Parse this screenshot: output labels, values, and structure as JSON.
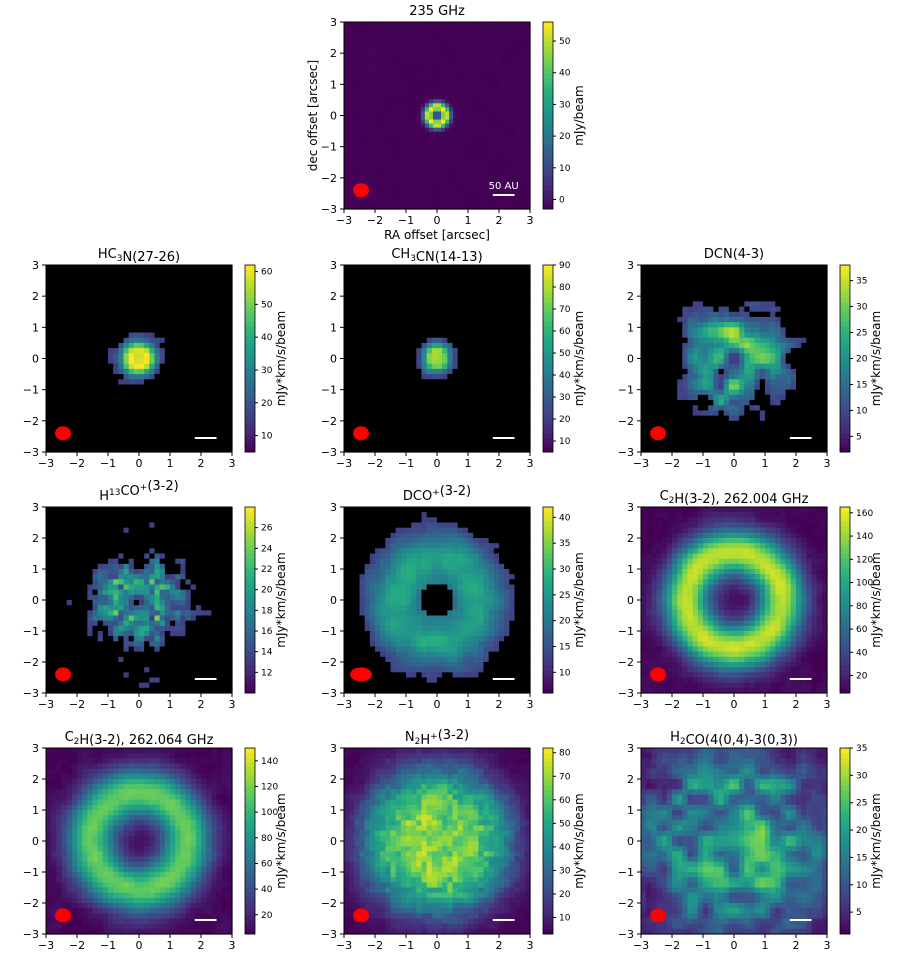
{
  "figure": {
    "colors": {
      "colormap": [
        "#440154",
        "#472c7a",
        "#3b518b",
        "#2c718e",
        "#21908d",
        "#27ad81",
        "#5cc863",
        "#aadc32",
        "#fde725"
      ],
      "masked_background": "#000000",
      "beam": "#ff0000",
      "scalebar": "#ffffff"
    }
  },
  "chart_data": [
    {
      "type": "heatmap",
      "id": "cont",
      "kind": "ring",
      "title": "235 GHz",
      "title_sub": "",
      "xlabel": "RA offset [arcsec]",
      "ylabel": "dec offset [arcsec]",
      "cbar_label": "mJy/beam",
      "xlim": [
        -3,
        3
      ],
      "ylim": [
        -3,
        3
      ],
      "xticks": [
        "−3",
        "−2",
        "−1",
        "0",
        "1",
        "2",
        "3"
      ],
      "yticks": [
        "−3",
        "−2",
        "−1",
        "0",
        "1",
        "2",
        "3"
      ],
      "clim": [
        -3,
        56
      ],
      "cticks": [
        {
          "v": 0,
          "t": "0"
        },
        {
          "v": 10,
          "t": "10"
        },
        {
          "v": 20,
          "t": "20"
        },
        {
          "v": 30,
          "t": "30"
        },
        {
          "v": 40,
          "t": "40"
        },
        {
          "v": 50,
          "t": "50"
        }
      ],
      "scalebar_label": "50 AU",
      "emission": {
        "ring_radius_arcsec": 0.28,
        "ring_width_arcsec": 0.16,
        "peak": 1.0,
        "noise": 0.02,
        "masked": false
      }
    },
    {
      "type": "heatmap",
      "id": "hc3n",
      "kind": "compact",
      "title": "HC3N(27-26)",
      "title_sub": "",
      "xlabel": "",
      "ylabel": "",
      "cbar_label": "mJy*km/s/beam",
      "xlim": [
        -3,
        3
      ],
      "ylim": [
        -3,
        3
      ],
      "xticks": [
        "−3",
        "−2",
        "−1",
        "0",
        "1",
        "2",
        "3"
      ],
      "yticks": [
        "−3",
        "−2",
        "−1",
        "0",
        "1",
        "2",
        "3"
      ],
      "clim": [
        5,
        62
      ],
      "cticks": [
        {
          "v": 10,
          "t": "10"
        },
        {
          "v": 20,
          "t": "20"
        },
        {
          "v": 30,
          "t": "30"
        },
        {
          "v": 40,
          "t": "40"
        },
        {
          "v": 50,
          "t": "50"
        },
        {
          "v": 60,
          "t": "60"
        }
      ],
      "scalebar_label": "",
      "emission": {
        "ring_radius_arcsec": 0.25,
        "ring_width_arcsec": 0.35,
        "peak": 0.8,
        "noise": 0.28,
        "masked": true
      }
    },
    {
      "type": "heatmap",
      "id": "ch3cn",
      "kind": "compact",
      "title": "CH3CN(14-13)",
      "title_sub": "",
      "xlabel": "",
      "ylabel": "",
      "cbar_label": "mJy*km/s/beam",
      "xlim": [
        -3,
        3
      ],
      "ylim": [
        -3,
        3
      ],
      "xticks": [
        "−3",
        "−2",
        "−1",
        "0",
        "1",
        "2",
        "3"
      ],
      "yticks": [
        "−3",
        "−2",
        "−1",
        "0",
        "1",
        "2",
        "3"
      ],
      "clim": [
        5,
        90
      ],
      "cticks": [
        {
          "v": 10,
          "t": "10"
        },
        {
          "v": 20,
          "t": "20"
        },
        {
          "v": 30,
          "t": "30"
        },
        {
          "v": 40,
          "t": "40"
        },
        {
          "v": 50,
          "t": "50"
        },
        {
          "v": 60,
          "t": "60"
        },
        {
          "v": 70,
          "t": "70"
        },
        {
          "v": 80,
          "t": "80"
        },
        {
          "v": 90,
          "t": "90"
        }
      ],
      "scalebar_label": "",
      "emission": {
        "ring_radius_arcsec": 0.2,
        "ring_width_arcsec": 0.3,
        "peak": 0.65,
        "noise": 0.25,
        "masked": true
      }
    },
    {
      "type": "heatmap",
      "id": "dcn",
      "kind": "diffuse",
      "title": "DCN(4-3)",
      "title_sub": "",
      "xlabel": "",
      "ylabel": "",
      "cbar_label": "mJy*km/s/beam",
      "xlim": [
        -3,
        3
      ],
      "ylim": [
        -3,
        3
      ],
      "xticks": [
        "−3",
        "−2",
        "−1",
        "0",
        "1",
        "2",
        "3"
      ],
      "yticks": [
        "−3",
        "−2",
        "−1",
        "0",
        "1",
        "2",
        "3"
      ],
      "clim": [
        2,
        38
      ],
      "cticks": [
        {
          "v": 5,
          "t": "5"
        },
        {
          "v": 10,
          "t": "10"
        },
        {
          "v": 15,
          "t": "15"
        },
        {
          "v": 20,
          "t": "20"
        },
        {
          "v": 25,
          "t": "25"
        },
        {
          "v": 30,
          "t": "30"
        },
        {
          "v": 35,
          "t": "35"
        }
      ],
      "scalebar_label": "",
      "emission": {
        "ring_radius_arcsec": 0.8,
        "ring_width_arcsec": 0.9,
        "peak": 0.55,
        "noise": 0.3,
        "masked": true
      }
    },
    {
      "type": "heatmap",
      "id": "h13co",
      "kind": "sparse",
      "title": "H13CO+(3-2)",
      "title_sub": "",
      "xlabel": "",
      "ylabel": "",
      "cbar_label": "mJy*km/s/beam",
      "xlim": [
        -3,
        3
      ],
      "ylim": [
        -3,
        3
      ],
      "xticks": [
        "−3",
        "−2",
        "−1",
        "0",
        "1",
        "2",
        "3"
      ],
      "yticks": [
        "−3",
        "−2",
        "−1",
        "0",
        "1",
        "2",
        "3"
      ],
      "clim": [
        10,
        28
      ],
      "cticks": [
        {
          "v": 12,
          "t": "12"
        },
        {
          "v": 14,
          "t": "14"
        },
        {
          "v": 16,
          "t": "16"
        },
        {
          "v": 18,
          "t": "18"
        },
        {
          "v": 20,
          "t": "20"
        },
        {
          "v": 22,
          "t": "22"
        },
        {
          "v": 24,
          "t": "24"
        },
        {
          "v": 26,
          "t": "26"
        }
      ],
      "scalebar_label": "",
      "emission": {
        "ring_radius_arcsec": 0.8,
        "ring_width_arcsec": 0.7,
        "peak": 0.5,
        "noise": 0.35,
        "masked": true
      }
    },
    {
      "type": "heatmap",
      "id": "dco",
      "kind": "ring_masked",
      "title": "DCO+(3-2)",
      "title_sub": "",
      "xlabel": "",
      "ylabel": "",
      "cbar_label": "mJy*km/s/beam",
      "xlim": [
        -3,
        3
      ],
      "ylim": [
        -3,
        3
      ],
      "xticks": [
        "−3",
        "−2",
        "−1",
        "0",
        "1",
        "2",
        "3"
      ],
      "yticks": [
        "−3",
        "−2",
        "−1",
        "0",
        "1",
        "2",
        "3"
      ],
      "clim": [
        6,
        42
      ],
      "cticks": [
        {
          "v": 10,
          "t": "10"
        },
        {
          "v": 15,
          "t": "15"
        },
        {
          "v": 20,
          "t": "20"
        },
        {
          "v": 25,
          "t": "25"
        },
        {
          "v": 30,
          "t": "30"
        },
        {
          "v": 35,
          "t": "35"
        },
        {
          "v": 40,
          "t": "40"
        }
      ],
      "scalebar_label": "",
      "emission": {
        "ring_radius_arcsec": 1.3,
        "ring_width_arcsec": 1.1,
        "peak": 0.55,
        "noise": 0.18,
        "masked": true
      }
    },
    {
      "type": "heatmap",
      "id": "c2h_a",
      "kind": "ring",
      "title": "C2H(3-2), 262.004 GHz",
      "title_sub": "",
      "xlabel": "",
      "ylabel": "",
      "cbar_label": "mJy*km/s/beam",
      "xlim": [
        -3,
        3
      ],
      "ylim": [
        -3,
        3
      ],
      "xticks": [
        "−3",
        "−2",
        "−1",
        "0",
        "1",
        "2",
        "3"
      ],
      "yticks": [
        "−3",
        "−2",
        "−1",
        "0",
        "1",
        "2",
        "3"
      ],
      "clim": [
        5,
        165
      ],
      "cticks": [
        {
          "v": 20,
          "t": "20"
        },
        {
          "v": 40,
          "t": "40"
        },
        {
          "v": 60,
          "t": "60"
        },
        {
          "v": 80,
          "t": "80"
        },
        {
          "v": 100,
          "t": "100"
        },
        {
          "v": 120,
          "t": "120"
        },
        {
          "v": 140,
          "t": "140"
        },
        {
          "v": 160,
          "t": "160"
        }
      ],
      "scalebar_label": "",
      "emission": {
        "ring_radius_arcsec": 1.55,
        "ring_width_arcsec": 0.75,
        "peak": 0.9,
        "noise": 0.1,
        "masked": false
      }
    },
    {
      "type": "heatmap",
      "id": "c2h_b",
      "kind": "ring",
      "title": "C2H(3-2), 262.064 GHz",
      "title_sub": "",
      "xlabel": "",
      "ylabel": "",
      "cbar_label": "mJy*km/s/beam",
      "xlim": [
        -3,
        3
      ],
      "ylim": [
        -3,
        3
      ],
      "xticks": [
        "−3",
        "−2",
        "−1",
        "0",
        "1",
        "2",
        "3"
      ],
      "yticks": [
        "−3",
        "−2",
        "−1",
        "0",
        "1",
        "2",
        "3"
      ],
      "clim": [
        5,
        150
      ],
      "cticks": [
        {
          "v": 20,
          "t": "20"
        },
        {
          "v": 40,
          "t": "40"
        },
        {
          "v": 60,
          "t": "60"
        },
        {
          "v": 80,
          "t": "80"
        },
        {
          "v": 100,
          "t": "100"
        },
        {
          "v": 120,
          "t": "120"
        },
        {
          "v": 140,
          "t": "140"
        }
      ],
      "scalebar_label": "",
      "emission": {
        "ring_radius_arcsec": 1.55,
        "ring_width_arcsec": 0.8,
        "peak": 0.75,
        "noise": 0.1,
        "masked": false
      }
    },
    {
      "type": "heatmap",
      "id": "n2h",
      "kind": "disk",
      "title": "N2H+(3-2)",
      "title_sub": "",
      "xlabel": "",
      "ylabel": "",
      "cbar_label": "mJy*km/s/beam",
      "xlim": [
        -3,
        3
      ],
      "ylim": [
        -3,
        3
      ],
      "xticks": [
        "−3",
        "−2",
        "−1",
        "0",
        "1",
        "2",
        "3"
      ],
      "yticks": [
        "−3",
        "−2",
        "−1",
        "0",
        "1",
        "2",
        "3"
      ],
      "clim": [
        3,
        82
      ],
      "cticks": [
        {
          "v": 10,
          "t": "10"
        },
        {
          "v": 20,
          "t": "20"
        },
        {
          "v": 30,
          "t": "30"
        },
        {
          "v": 40,
          "t": "40"
        },
        {
          "v": 50,
          "t": "50"
        },
        {
          "v": 60,
          "t": "60"
        },
        {
          "v": 70,
          "t": "70"
        },
        {
          "v": 80,
          "t": "80"
        }
      ],
      "scalebar_label": "",
      "emission": {
        "ring_radius_arcsec": 1.2,
        "ring_width_arcsec": 1.6,
        "peak": 0.85,
        "noise": 0.08,
        "masked": false
      }
    },
    {
      "type": "heatmap",
      "id": "h2co",
      "kind": "diffuse",
      "title": "H2CO(4(0,4)-3(0,3))",
      "title_sub": "",
      "xlabel": "",
      "ylabel": "",
      "cbar_label": "mJy*km/s/beam",
      "xlim": [
        -3,
        3
      ],
      "ylim": [
        -3,
        3
      ],
      "xticks": [
        "−3",
        "−2",
        "−1",
        "0",
        "1",
        "2",
        "3"
      ],
      "yticks": [
        "−3",
        "−2",
        "−1",
        "0",
        "1",
        "2",
        "3"
      ],
      "clim": [
        1,
        35
      ],
      "cticks": [
        {
          "v": 5,
          "t": "5"
        },
        {
          "v": 10,
          "t": "10"
        },
        {
          "v": 15,
          "t": "15"
        },
        {
          "v": 20,
          "t": "20"
        },
        {
          "v": 25,
          "t": "25"
        },
        {
          "v": 30,
          "t": "30"
        },
        {
          "v": 35,
          "t": "35"
        }
      ],
      "scalebar_label": "",
      "emission": {
        "ring_radius_arcsec": 1.2,
        "ring_width_arcsec": 2.0,
        "peak": 0.5,
        "noise": 0.2,
        "masked": false
      }
    }
  ]
}
